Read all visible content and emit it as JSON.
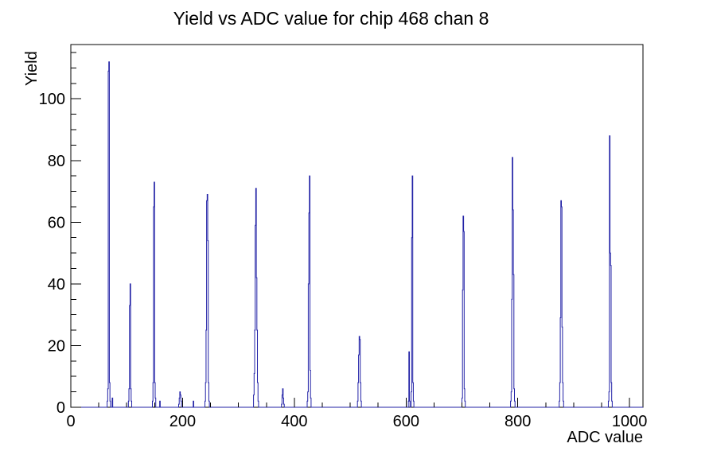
{
  "window": {
    "background": "#ffffff"
  },
  "chart_data": {
    "type": "bar",
    "title": "Yield vs ADC value for chip 468 chan 8",
    "xlabel": "ADC value",
    "ylabel": "Yield",
    "xlim": [
      0,
      1024
    ],
    "ylim": [
      0,
      117.6
    ],
    "x_major_ticks": [
      0,
      200,
      400,
      600,
      800,
      1000
    ],
    "x_minor_step": 50,
    "y_major_ticks": [
      0,
      20,
      40,
      60,
      80,
      100
    ],
    "y_minor_step": 5,
    "grid": false,
    "legend": false,
    "line_color": "#2121a6",
    "frame_color": "#000000",
    "bins_format": "[adc_value, yield]",
    "bins": [
      [
        65,
        2
      ],
      [
        66,
        6
      ],
      [
        67,
        109
      ],
      [
        68,
        112
      ],
      [
        69,
        8
      ],
      [
        70,
        2
      ],
      [
        74,
        3
      ],
      [
        103,
        2
      ],
      [
        104,
        6
      ],
      [
        105,
        33
      ],
      [
        106,
        40
      ],
      [
        107,
        6
      ],
      [
        108,
        2
      ],
      [
        146,
        2
      ],
      [
        147,
        8
      ],
      [
        148,
        65
      ],
      [
        149,
        73
      ],
      [
        150,
        8
      ],
      [
        151,
        3
      ],
      [
        159,
        2
      ],
      [
        193,
        1
      ],
      [
        194,
        3
      ],
      [
        195,
        5
      ],
      [
        196,
        4
      ],
      [
        197,
        2
      ],
      [
        219,
        2
      ],
      [
        240,
        2
      ],
      [
        241,
        8
      ],
      [
        242,
        25
      ],
      [
        243,
        67
      ],
      [
        244,
        69
      ],
      [
        245,
        54
      ],
      [
        246,
        8
      ],
      [
        247,
        2
      ],
      [
        327,
        4
      ],
      [
        328,
        11
      ],
      [
        329,
        25
      ],
      [
        330,
        59
      ],
      [
        331,
        71
      ],
      [
        332,
        42
      ],
      [
        333,
        25
      ],
      [
        334,
        8
      ],
      [
        335,
        2
      ],
      [
        377,
        1
      ],
      [
        378,
        4
      ],
      [
        379,
        6
      ],
      [
        380,
        3
      ],
      [
        381,
        1
      ],
      [
        423,
        2
      ],
      [
        424,
        5
      ],
      [
        425,
        40
      ],
      [
        426,
        63
      ],
      [
        427,
        75
      ],
      [
        428,
        12
      ],
      [
        429,
        3
      ],
      [
        513,
        2
      ],
      [
        514,
        8
      ],
      [
        515,
        17
      ],
      [
        516,
        23
      ],
      [
        517,
        22
      ],
      [
        518,
        8
      ],
      [
        519,
        2
      ],
      [
        604,
        2
      ],
      [
        605,
        18
      ],
      [
        606,
        2
      ],
      [
        609,
        5
      ],
      [
        610,
        55
      ],
      [
        611,
        75
      ],
      [
        612,
        8
      ],
      [
        613,
        2
      ],
      [
        700,
        3
      ],
      [
        701,
        38
      ],
      [
        702,
        62
      ],
      [
        703,
        57
      ],
      [
        704,
        6
      ],
      [
        705,
        2
      ],
      [
        787,
        2
      ],
      [
        788,
        5
      ],
      [
        789,
        35
      ],
      [
        790,
        81
      ],
      [
        791,
        64
      ],
      [
        792,
        43
      ],
      [
        793,
        6
      ],
      [
        794,
        2
      ],
      [
        874,
        2
      ],
      [
        875,
        8
      ],
      [
        876,
        29
      ],
      [
        877,
        67
      ],
      [
        878,
        65
      ],
      [
        879,
        26
      ],
      [
        880,
        8
      ],
      [
        881,
        2
      ],
      [
        962,
        2
      ],
      [
        963,
        5
      ],
      [
        964,
        88
      ],
      [
        965,
        50
      ],
      [
        966,
        46
      ],
      [
        967,
        8
      ],
      [
        968,
        2
      ]
    ]
  }
}
